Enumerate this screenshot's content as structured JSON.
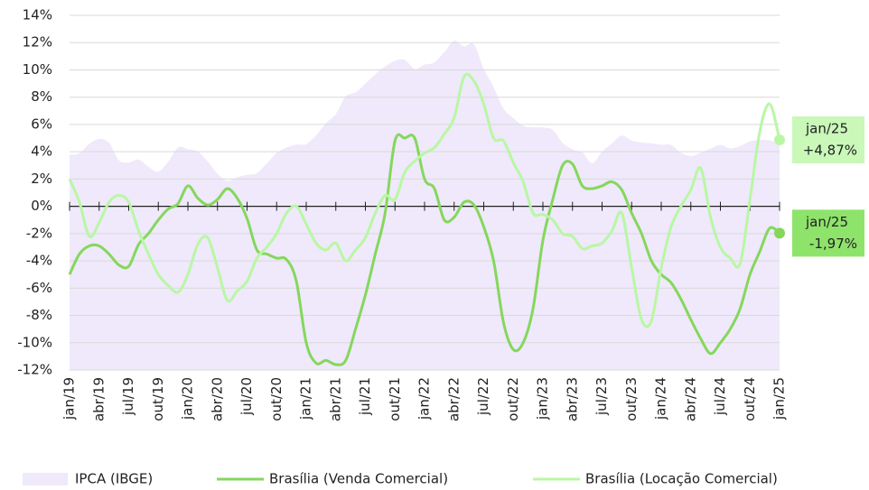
{
  "chart_data": {
    "type": "line",
    "categories": [
      "jan/19",
      null,
      null,
      "abr/19",
      null,
      null,
      "jul/19",
      null,
      null,
      "out/19",
      null,
      null,
      "jan/20",
      null,
      null,
      "abr/20",
      null,
      null,
      "jul/20",
      null,
      null,
      "out/20",
      null,
      null,
      "jan/21",
      null,
      null,
      "abr/21",
      null,
      null,
      "jul/21",
      null,
      null,
      "out/21",
      null,
      null,
      "jan/22",
      null,
      null,
      "abr/22",
      null,
      null,
      "jul/22",
      null,
      null,
      "out/22",
      null,
      null,
      "jan/23",
      null,
      null,
      "abr/23",
      null,
      null,
      "jul/23",
      null,
      null,
      "out/23",
      null,
      null,
      "jan/24",
      null,
      null,
      "abr/24",
      null,
      null,
      "jul/24",
      null,
      null,
      "out/24",
      null,
      null,
      "jan/25"
    ],
    "ylim": [
      -12,
      14
    ],
    "yticks": [
      {
        "value": -12,
        "label": "-12%"
      },
      {
        "value": -10,
        "label": "-10%"
      },
      {
        "value": -8,
        "label": "-8%"
      },
      {
        "value": -6,
        "label": "-6%"
      },
      {
        "value": -4,
        "label": "-4%"
      },
      {
        "value": -2,
        "label": "-2%"
      },
      {
        "value": 0,
        "label": "0%"
      },
      {
        "value": 2,
        "label": "2%"
      },
      {
        "value": 4,
        "label": "4%"
      },
      {
        "value": 6,
        "label": "6%"
      },
      {
        "value": 8,
        "label": "8%"
      },
      {
        "value": 10,
        "label": "10%"
      },
      {
        "value": 12,
        "label": "12%"
      },
      {
        "value": 14,
        "label": "14%"
      }
    ],
    "grid": true,
    "series": [
      {
        "name": "IPCA (IBGE)",
        "kind": "area",
        "color": "#efe9fb",
        "values": [
          3.78,
          3.89,
          4.58,
          4.94,
          4.66,
          3.37,
          3.22,
          3.43,
          2.89,
          2.54,
          3.27,
          4.31,
          4.19,
          4.01,
          3.3,
          2.4,
          1.88,
          2.13,
          2.31,
          2.44,
          3.14,
          3.92,
          4.31,
          4.52,
          4.56,
          5.2,
          6.1,
          6.76,
          8.06,
          8.35,
          8.99,
          9.68,
          10.25,
          10.67,
          10.74,
          10.06,
          10.38,
          10.54,
          11.3,
          12.13,
          11.73,
          11.89,
          10.07,
          8.73,
          7.17,
          6.47,
          5.9,
          5.79,
          5.77,
          5.6,
          4.65,
          4.18,
          3.94,
          3.16,
          3.99,
          4.61,
          5.19,
          4.82,
          4.68,
          4.62,
          4.51,
          4.5,
          3.93,
          3.69,
          3.93,
          4.23,
          4.5,
          4.24,
          4.42,
          4.76,
          4.87,
          4.83,
          4.56
        ]
      },
      {
        "name": "Brasília (Venda Comercial)",
        "kind": "line",
        "color": "#85d75c",
        "label_color": "#8ee36b",
        "values": [
          -5.0,
          -3.5,
          -2.9,
          -2.9,
          -3.5,
          -4.3,
          -4.4,
          -2.8,
          -2.0,
          -1.0,
          -0.2,
          0.2,
          1.5,
          0.6,
          0.1,
          0.5,
          1.3,
          0.6,
          -0.9,
          -3.2,
          -3.5,
          -3.8,
          -3.9,
          -5.5,
          -10.0,
          -11.5,
          -11.3,
          -11.6,
          -11.3,
          -9.0,
          -6.5,
          -3.5,
          -0.5,
          4.8,
          5.0,
          5.0,
          2.0,
          1.3,
          -1.0,
          -0.8,
          0.3,
          0.1,
          -1.5,
          -4.0,
          -8.5,
          -10.5,
          -10.0,
          -7.5,
          -2.5,
          0.5,
          3.0,
          3.1,
          1.5,
          1.3,
          1.5,
          1.8,
          1.2,
          -0.5,
          -2.0,
          -4.0,
          -5.0,
          -5.6,
          -6.8,
          -8.3,
          -9.7,
          -10.8,
          -10.0,
          -9.0,
          -7.5,
          -5.0,
          -3.3,
          -1.6,
          -1.97
        ],
        "end_label": {
          "date": "jan/25",
          "value": "-1,97%"
        }
      },
      {
        "name": "Brasília (Locação Comercial)",
        "kind": "line",
        "color": "#b9f7a4",
        "label_color": "#c9f8b9",
        "values": [
          2.0,
          0.3,
          -2.2,
          -1.2,
          0.3,
          0.8,
          0.3,
          -1.8,
          -3.5,
          -5.0,
          -5.8,
          -6.3,
          -5.0,
          -2.8,
          -2.3,
          -4.5,
          -6.9,
          -6.2,
          -5.5,
          -3.8,
          -3.0,
          -2.0,
          -0.5,
          0.0,
          -1.3,
          -2.7,
          -3.2,
          -2.7,
          -4.0,
          -3.2,
          -2.3,
          -0.5,
          0.8,
          0.5,
          2.5,
          3.3,
          3.9,
          4.3,
          5.3,
          6.5,
          9.5,
          9.2,
          7.5,
          5.0,
          4.8,
          3.2,
          1.8,
          -0.5,
          -0.6,
          -1.0,
          -2.0,
          -2.2,
          -3.1,
          -2.9,
          -2.7,
          -1.8,
          -0.5,
          -4.5,
          -8.3,
          -8.4,
          -4.5,
          -1.5,
          0.0,
          1.2,
          2.8,
          -0.8,
          -3.0,
          -3.8,
          -4.2,
          0.5,
          5.5,
          7.5,
          4.87
        ],
        "end_label": {
          "date": "jan/25",
          "value": "+4,87%"
        }
      }
    ]
  }
}
